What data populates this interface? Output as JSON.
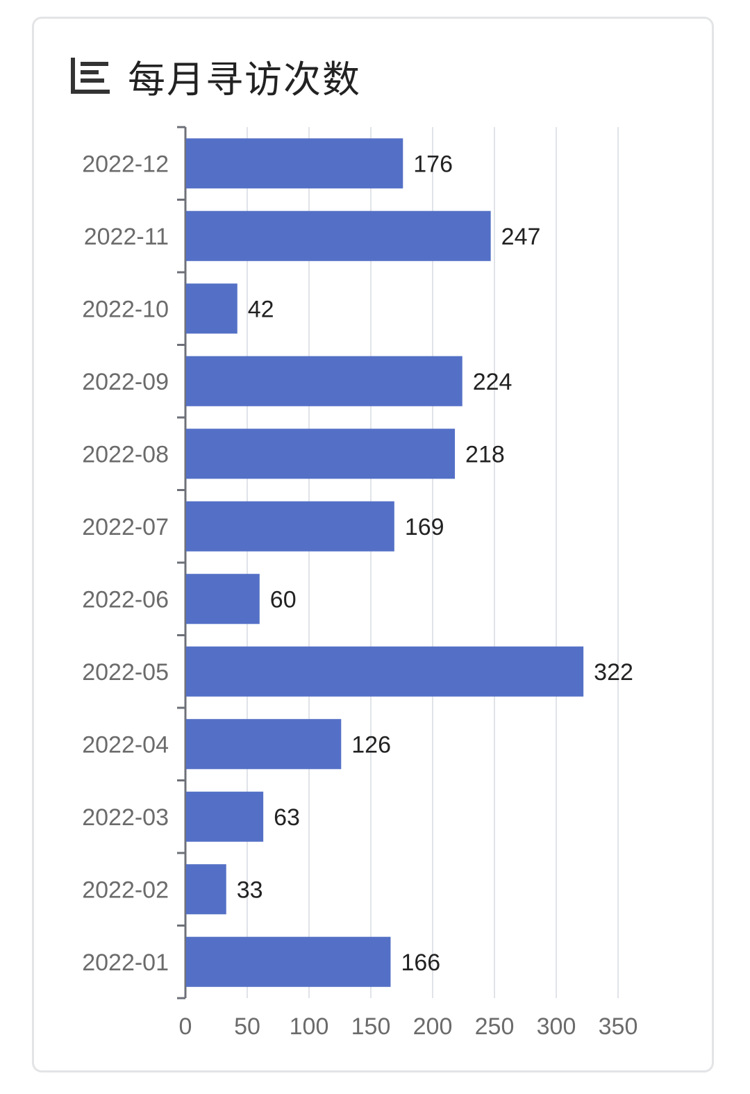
{
  "header": {
    "title": "每月寻访次数",
    "icon": "bar-list-icon"
  },
  "chart_data": {
    "type": "bar",
    "orientation": "horizontal",
    "title": "每月寻访次数",
    "categories": [
      "2022-12",
      "2022-11",
      "2022-10",
      "2022-09",
      "2022-08",
      "2022-07",
      "2022-06",
      "2022-05",
      "2022-04",
      "2022-03",
      "2022-02",
      "2022-01"
    ],
    "values": [
      176,
      247,
      42,
      224,
      218,
      169,
      60,
      322,
      126,
      63,
      33,
      166
    ],
    "x_ticks": [
      "0",
      "50",
      "100",
      "150",
      "200",
      "250",
      "300",
      "350"
    ],
    "xlim": [
      0,
      350
    ],
    "grid": "vertical",
    "data_labels": true,
    "bar_color": "#5470c6"
  }
}
